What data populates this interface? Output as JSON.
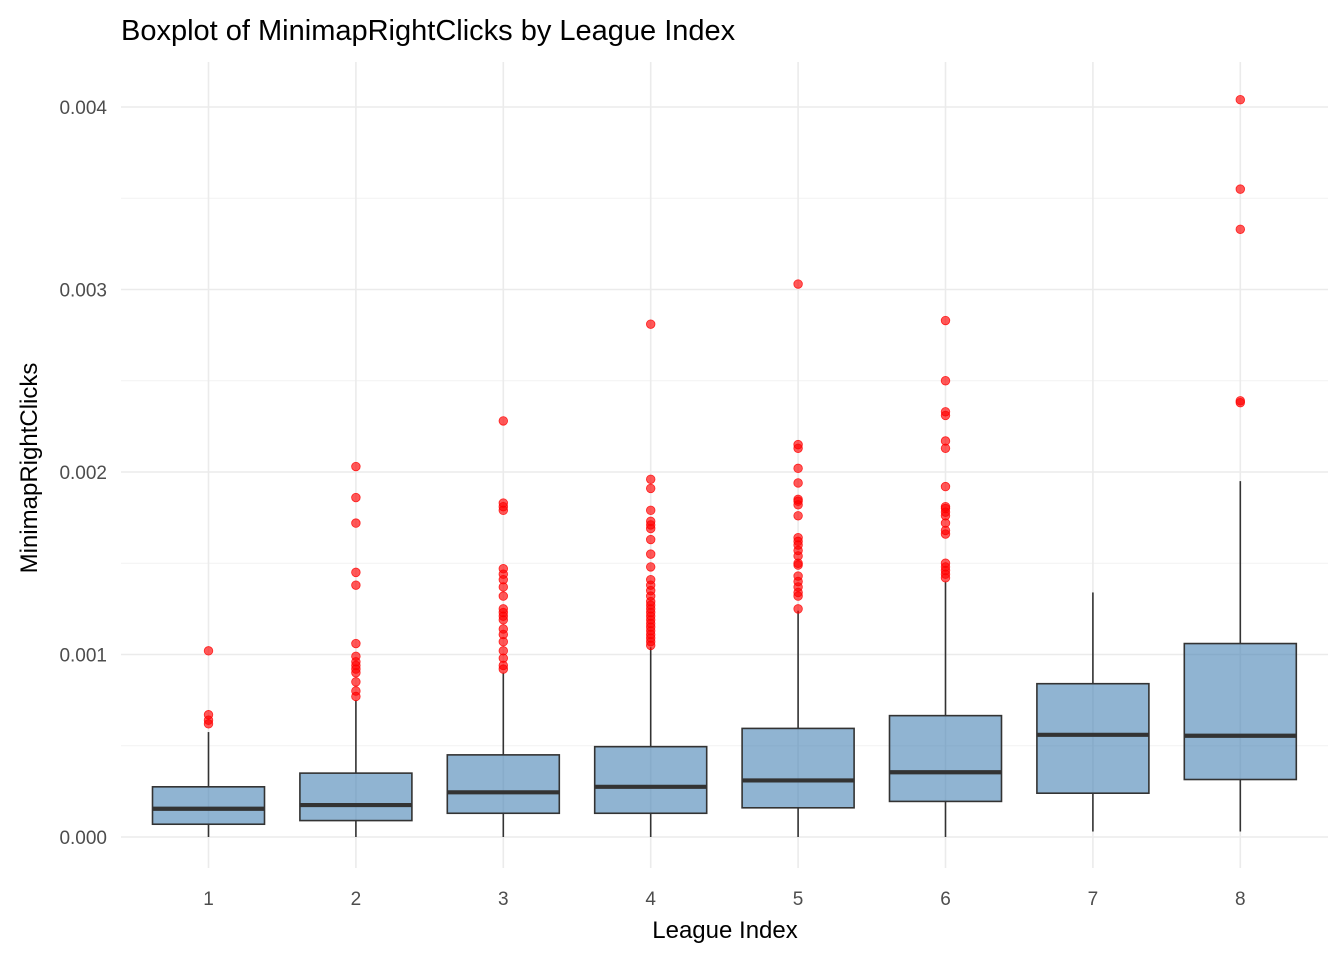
{
  "chart_data": {
    "type": "boxplot",
    "title": "Boxplot of MinimapRightClicks by League Index",
    "xlabel": "League Index",
    "ylabel": "MinimapRightClicks",
    "categories": [
      "1",
      "2",
      "3",
      "4",
      "5",
      "6",
      "7",
      "8"
    ],
    "ylim": [
      -0.00017,
      0.0042
    ],
    "y_ticks": [
      0,
      0.001,
      0.002,
      0.003,
      0.004
    ],
    "y_tick_labels": [
      "0.000",
      "0.001",
      "0.002",
      "0.003",
      "0.004"
    ],
    "grid": true,
    "colors": {
      "box_fill": "#4682b4",
      "box_fill_opacity": 0.6,
      "box_stroke": "#333333",
      "outlier": "#ff0000",
      "outlier_opacity": 0.65,
      "grid": "#ebebeb"
    },
    "boxes": [
      {
        "category": "1",
        "q1": 7e-05,
        "median": 0.000155,
        "q3": 0.000275,
        "whisker_low": 0.0,
        "whisker_high": 0.000575,
        "outliers": [
          0.00102,
          0.00067,
          0.00064,
          0.00062
        ]
      },
      {
        "category": "2",
        "q1": 9e-05,
        "median": 0.000175,
        "q3": 0.00035,
        "whisker_low": 0.0,
        "whisker_high": 0.00075,
        "outliers": [
          0.00203,
          0.00186,
          0.00172,
          0.00145,
          0.00138,
          0.00106,
          0.00099,
          0.00096,
          0.00094,
          0.00092,
          0.0009,
          0.00085,
          0.0008,
          0.00077
        ]
      },
      {
        "category": "3",
        "q1": 0.00013,
        "median": 0.000245,
        "q3": 0.00045,
        "whisker_low": 0.0,
        "whisker_high": 0.0009,
        "outliers": [
          0.00228,
          0.00183,
          0.00181,
          0.00179,
          0.00147,
          0.00144,
          0.00141,
          0.00137,
          0.00132,
          0.00125,
          0.00123,
          0.00121,
          0.00119,
          0.00114,
          0.00111,
          0.00107,
          0.00102,
          0.00098,
          0.00094,
          0.00092
        ]
      },
      {
        "category": "4",
        "q1": 0.00013,
        "median": 0.000275,
        "q3": 0.000495,
        "whisker_low": 0.0,
        "whisker_high": 0.00104,
        "outliers": [
          0.00281,
          0.00196,
          0.00191,
          0.00179,
          0.00173,
          0.00171,
          0.00169,
          0.00163,
          0.00155,
          0.00148,
          0.00141,
          0.00138,
          0.00135,
          0.00132,
          0.00129,
          0.00127,
          0.00125,
          0.00123,
          0.00121,
          0.00119,
          0.00117,
          0.00115,
          0.00113,
          0.00111,
          0.00109,
          0.00107,
          0.00105
        ]
      },
      {
        "category": "5",
        "q1": 0.00016,
        "median": 0.00031,
        "q3": 0.000595,
        "whisker_low": 0.0,
        "whisker_high": 0.00124,
        "outliers": [
          0.00303,
          0.00215,
          0.00213,
          0.00202,
          0.00194,
          0.00185,
          0.00184,
          0.00182,
          0.00176,
          0.00164,
          0.00162,
          0.0016,
          0.00157,
          0.00154,
          0.0015,
          0.00149,
          0.00143,
          0.0014,
          0.00137,
          0.00134,
          0.00132,
          0.00125
        ]
      },
      {
        "category": "6",
        "q1": 0.000195,
        "median": 0.000355,
        "q3": 0.000665,
        "whisker_low": 0.0,
        "whisker_high": 0.0014,
        "outliers": [
          0.00283,
          0.0025,
          0.00233,
          0.00231,
          0.00217,
          0.00213,
          0.00192,
          0.00181,
          0.0018,
          0.00178,
          0.00176,
          0.00172,
          0.00168,
          0.00166,
          0.0015,
          0.00148,
          0.00146,
          0.00144,
          0.00142
        ]
      },
      {
        "category": "7",
        "q1": 0.00024,
        "median": 0.00056,
        "q3": 0.00084,
        "whisker_low": 3e-05,
        "whisker_high": 0.00134,
        "outliers": []
      },
      {
        "category": "8",
        "q1": 0.000315,
        "median": 0.000555,
        "q3": 0.00106,
        "whisker_low": 3e-05,
        "whisker_high": 0.00195,
        "outliers": [
          0.00404,
          0.00355,
          0.00333,
          0.00239,
          0.00238
        ]
      }
    ]
  }
}
